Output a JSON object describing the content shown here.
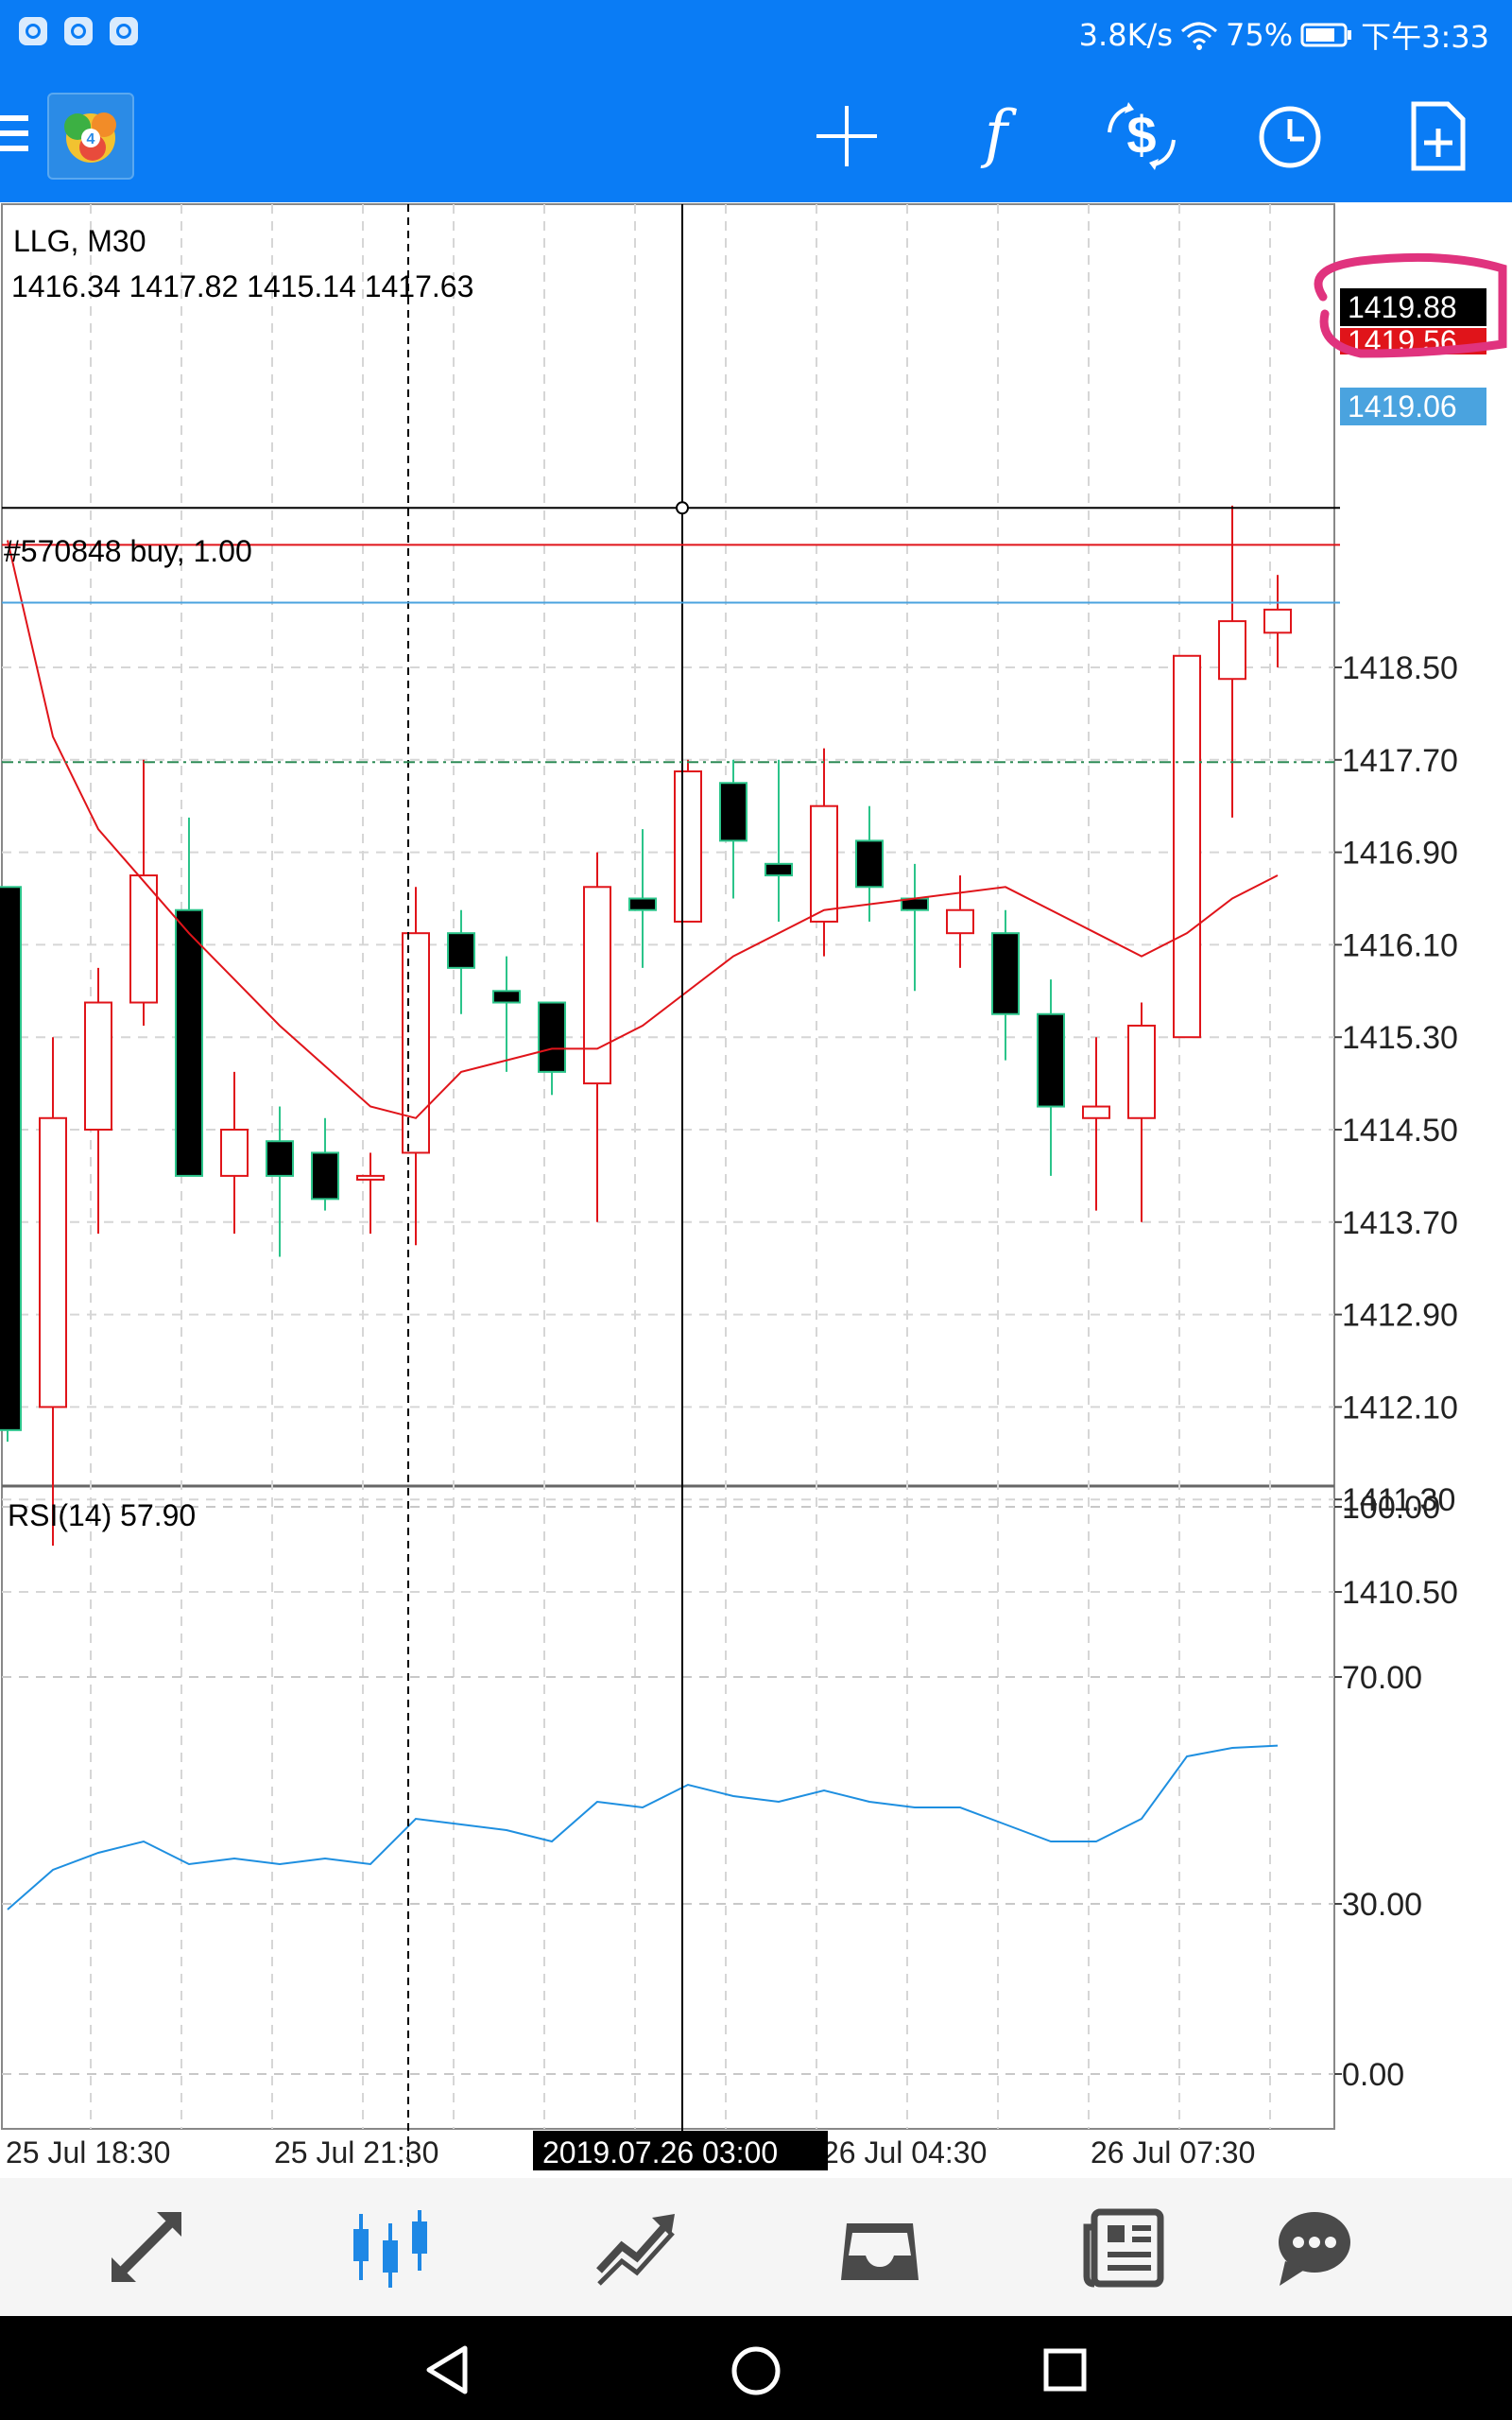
{
  "status_bar": {
    "speed": "3.8K/s",
    "battery": "75%",
    "time": "下午3:33"
  },
  "toolbar": {
    "icons": [
      "menu-icon",
      "app-logo",
      "crosshair-icon",
      "indicators-icon",
      "symbol-icon",
      "timeframe-icon",
      "new-order-icon"
    ],
    "indicator_glyph": "f"
  },
  "colors": {
    "accent": "#0a7cf5",
    "bull_candle": "#e0141a",
    "bear_candle": "#000000",
    "ma_line": "#e0141a",
    "rsi_line": "#1e8fe0",
    "bid_line": "#000000",
    "ask_line": "#e0141a",
    "level_line": "#4aa3df",
    "order_line": "#2e8b57",
    "annotation": "#e0337e"
  },
  "chart": {
    "symbol_label": "LLG, M30",
    "ohlc": "1416.34 1417.82 1415.14 1417.63",
    "order_label": "#570848 buy, 1.00",
    "order_price": 1417.68,
    "bid_price": 1419.88,
    "bid_label": "1419.88",
    "ask_price": 1419.56,
    "ask_label": "1419.56",
    "level_price": 1419.06,
    "level_label": "1419.06",
    "crosshair_label": "2019.07.26 03:00",
    "rsi_label": "RSI(14) 57.90"
  },
  "tab_bar": {
    "icons": [
      "trade-icon",
      "chart-tab-icon",
      "history-icon",
      "mailbox-icon",
      "news-icon",
      "chat-icon"
    ],
    "active": 1
  },
  "chart_data": [
    {
      "type": "candlestick",
      "title": "LLG, M30",
      "ylabel": "",
      "xlabel": "",
      "y_ticks": [
        1418.5,
        1417.7,
        1416.9,
        1416.1,
        1415.3,
        1414.5,
        1413.7,
        1412.9,
        1412.1,
        1411.3,
        1410.5
      ],
      "y_tick_labels": [
        "1418.50",
        "1417.70",
        "1416.90",
        "1416.10",
        "1415.30",
        "1414.50",
        "1413.70",
        "1412.90",
        "1412.10",
        "1411.30",
        "1410.50"
      ],
      "x_ticks": [
        "25 Jul 18:30",
        "25 Jul 21:30",
        "26 Jul 04:30",
        "26 Jul 07:30"
      ],
      "grid": true,
      "candles": [
        {
          "o": 1416.6,
          "h": 1416.6,
          "l": 1411.8,
          "c": 1411.9
        },
        {
          "o": 1412.1,
          "h": 1415.3,
          "l": 1410.9,
          "c": 1414.6
        },
        {
          "o": 1414.5,
          "h": 1415.9,
          "l": 1413.6,
          "c": 1415.6
        },
        {
          "o": 1415.6,
          "h": 1417.7,
          "l": 1415.4,
          "c": 1416.7
        },
        {
          "o": 1416.4,
          "h": 1417.2,
          "l": 1414.1,
          "c": 1414.1
        },
        {
          "o": 1414.1,
          "h": 1415.0,
          "l": 1413.6,
          "c": 1414.5
        },
        {
          "o": 1414.4,
          "h": 1414.7,
          "l": 1413.4,
          "c": 1414.1
        },
        {
          "o": 1414.3,
          "h": 1414.6,
          "l": 1413.8,
          "c": 1413.9
        },
        {
          "o": 1414.1,
          "h": 1414.3,
          "l": 1413.6,
          "c": 1414.1
        },
        {
          "o": 1414.3,
          "h": 1416.6,
          "l": 1413.5,
          "c": 1416.2
        },
        {
          "o": 1416.2,
          "h": 1416.4,
          "l": 1415.5,
          "c": 1415.9
        },
        {
          "o": 1415.7,
          "h": 1416.0,
          "l": 1415.0,
          "c": 1415.6
        },
        {
          "o": 1415.6,
          "h": 1415.6,
          "l": 1414.8,
          "c": 1415.0
        },
        {
          "o": 1414.9,
          "h": 1416.9,
          "l": 1413.7,
          "c": 1416.6
        },
        {
          "o": 1416.5,
          "h": 1417.1,
          "l": 1415.9,
          "c": 1416.4
        },
        {
          "o": 1416.3,
          "h": 1417.7,
          "l": 1416.3,
          "c": 1417.6
        },
        {
          "o": 1417.5,
          "h": 1417.7,
          "l": 1416.5,
          "c": 1417.0
        },
        {
          "o": 1416.8,
          "h": 1417.7,
          "l": 1416.3,
          "c": 1416.7
        },
        {
          "o": 1416.3,
          "h": 1417.8,
          "l": 1416.0,
          "c": 1417.3
        },
        {
          "o": 1417.0,
          "h": 1417.3,
          "l": 1416.3,
          "c": 1416.6
        },
        {
          "o": 1416.5,
          "h": 1416.8,
          "l": 1415.7,
          "c": 1416.4
        },
        {
          "o": 1416.2,
          "h": 1416.7,
          "l": 1415.9,
          "c": 1416.4
        },
        {
          "o": 1416.2,
          "h": 1416.4,
          "l": 1415.1,
          "c": 1415.5
        },
        {
          "o": 1415.5,
          "h": 1415.8,
          "l": 1414.1,
          "c": 1414.7
        },
        {
          "o": 1414.6,
          "h": 1415.3,
          "l": 1413.8,
          "c": 1414.7
        },
        {
          "o": 1414.6,
          "h": 1415.6,
          "l": 1413.7,
          "c": 1415.4
        },
        {
          "o": 1415.3,
          "h": 1418.6,
          "l": 1415.3,
          "c": 1418.6
        },
        {
          "o": 1418.4,
          "h": 1419.9,
          "l": 1417.2,
          "c": 1418.9
        },
        {
          "o": 1418.8,
          "h": 1419.3,
          "l": 1418.5,
          "c": 1419.0
        }
      ],
      "moving_average": [
        {
          "i": 0,
          "v": 1419.6
        },
        {
          "i": 1,
          "v": 1417.9
        },
        {
          "i": 2,
          "v": 1417.1
        },
        {
          "i": 4,
          "v": 1416.2
        },
        {
          "i": 6,
          "v": 1415.4
        },
        {
          "i": 8,
          "v": 1414.7
        },
        {
          "i": 9,
          "v": 1414.6
        },
        {
          "i": 10,
          "v": 1415.0
        },
        {
          "i": 12,
          "v": 1415.2
        },
        {
          "i": 13,
          "v": 1415.2
        },
        {
          "i": 14,
          "v": 1415.4
        },
        {
          "i": 16,
          "v": 1416.0
        },
        {
          "i": 18,
          "v": 1416.4
        },
        {
          "i": 20,
          "v": 1416.5
        },
        {
          "i": 22,
          "v": 1416.6
        },
        {
          "i": 24,
          "v": 1416.2
        },
        {
          "i": 25,
          "v": 1416.0
        },
        {
          "i": 26,
          "v": 1416.2
        },
        {
          "i": 27,
          "v": 1416.5
        },
        {
          "i": 28,
          "v": 1416.7
        }
      ]
    },
    {
      "type": "line",
      "title": "RSI(14) 57.90",
      "ylim": [
        0,
        100
      ],
      "y_ticks": [
        100.0,
        70.0,
        30.0,
        0.0
      ],
      "y_tick_labels": [
        "100.00",
        "70.00",
        "30.00",
        "0.00"
      ],
      "grid": true,
      "series": [
        {
          "name": "RSI(14)",
          "values": [
            29,
            36,
            39,
            41,
            37,
            38,
            37,
            38,
            37,
            45,
            44,
            43,
            41,
            48,
            47,
            51,
            49,
            48,
            50,
            48,
            47,
            47,
            44,
            41,
            41,
            45,
            56,
            57.5,
            57.9
          ]
        }
      ]
    }
  ]
}
